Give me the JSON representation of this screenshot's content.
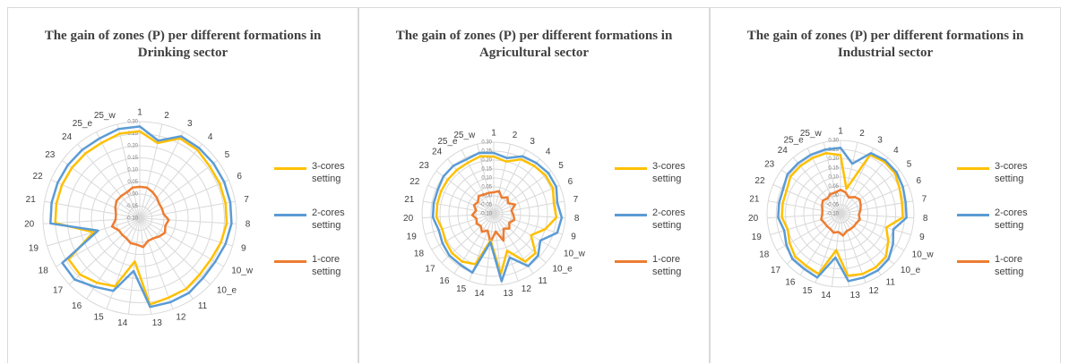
{
  "chart_data": [
    {
      "type": "radar",
      "title": "The gain of zones (P) per different formations in Drinking sector",
      "categories": [
        "1",
        "2",
        "3",
        "4",
        "5",
        "6",
        "7",
        "8",
        "9",
        "10_w",
        "10_e",
        "11",
        "12",
        "13",
        "14",
        "15",
        "16",
        "17",
        "18",
        "19",
        "20",
        "21",
        "22",
        "23",
        "24",
        "25_e",
        "25_w"
      ],
      "ylim": [
        -0.1,
        0.3
      ],
      "yticks": [
        {
          "value": -0.1,
          "label": "-0.10"
        },
        {
          "value": -0.05,
          "label": "-0.05"
        },
        {
          "value": 0,
          "label": "0.00"
        },
        {
          "value": 0.05,
          "label": "0.05"
        },
        {
          "value": 0.1,
          "label": "0.10"
        },
        {
          "value": 0.15,
          "label": "0.15"
        },
        {
          "value": 0.2,
          "label": "0.20"
        },
        {
          "value": 0.25,
          "label": "0.25"
        },
        {
          "value": 0.3,
          "label": "0.30"
        }
      ],
      "grid": true,
      "legend": "right",
      "series": [
        {
          "name": "3-cores setting",
          "color": "#FFC000",
          "values": [
            0.26,
            0.22,
            0.27,
            0.27,
            0.26,
            0.26,
            0.26,
            0.26,
            0.25,
            0.24,
            0.24,
            0.25,
            0.25,
            0.26,
            0.08,
            0.2,
            0.22,
            0.24,
            0.24,
            0.1,
            0.25,
            0.25,
            0.25,
            0.25,
            0.25,
            0.25,
            0.26
          ]
        },
        {
          "name": "2-cores setting",
          "color": "#5B9BD5",
          "values": [
            0.28,
            0.23,
            0.28,
            0.28,
            0.28,
            0.28,
            0.28,
            0.28,
            0.27,
            0.26,
            0.26,
            0.27,
            0.27,
            0.27,
            0.12,
            0.22,
            0.24,
            0.27,
            0.27,
            0.08,
            0.27,
            0.27,
            0.27,
            0.27,
            0.27,
            0.27,
            0.28
          ]
        },
        {
          "name": "1-core setting",
          "color": "#ED7D31",
          "values": [
            0.03,
            0.03,
            0.02,
            0.01,
            0,
            0,
            0,
            0.02,
            0.01,
            0.02,
            0.01,
            0,
            0,
            0.02,
            0.01,
            0.01,
            0,
            0,
            0,
            0.02,
            0,
            0,
            0.01,
            0.02,
            0.02,
            0.02,
            0.03
          ]
        }
      ]
    },
    {
      "type": "radar",
      "title": "The gain of zones (P) per different formations in Agricultural sector",
      "categories": [
        "1",
        "2",
        "3",
        "4",
        "5",
        "6",
        "7",
        "8",
        "9",
        "10_w",
        "10_e",
        "11",
        "12",
        "13",
        "14",
        "15",
        "16",
        "17",
        "18",
        "19",
        "20",
        "21",
        "22",
        "23",
        "24",
        "25_e",
        "25_w"
      ],
      "ylim": [
        -0.1,
        0.3
      ],
      "yticks": [
        {
          "value": -0.1,
          "label": "-0.10"
        },
        {
          "value": -0.05,
          "label": "-0.05"
        },
        {
          "value": 0,
          "label": "0.00"
        },
        {
          "value": 0.05,
          "label": "0.05"
        },
        {
          "value": 0.1,
          "label": "0.10"
        },
        {
          "value": 0.15,
          "label": "0.15"
        },
        {
          "value": 0.2,
          "label": "0.20"
        },
        {
          "value": 0.25,
          "label": "0.25"
        },
        {
          "value": 0.3,
          "label": "0.30"
        }
      ],
      "grid": true,
      "legend": "right",
      "series": [
        {
          "name": "3-cores setting",
          "color": "#FFC000",
          "values": [
            0.22,
            0.2,
            0.24,
            0.25,
            0.26,
            0.26,
            0.24,
            0.25,
            0.2,
            0.14,
            0.22,
            0.22,
            0.12,
            0.24,
            0.05,
            0.2,
            0.22,
            0.22,
            0.21,
            0.2,
            0.22,
            0.22,
            0.22,
            0.22,
            0.22,
            0.22,
            0.23
          ]
        },
        {
          "name": "2-cores setting",
          "color": "#5B9BD5",
          "values": [
            0.24,
            0.22,
            0.26,
            0.27,
            0.28,
            0.28,
            0.26,
            0.28,
            0.27,
            0.2,
            0.24,
            0.25,
            0.16,
            0.28,
            0.06,
            0.25,
            0.24,
            0.24,
            0.23,
            0.22,
            0.24,
            0.24,
            0.24,
            0.25,
            0.25,
            0.24,
            0.25
          ]
        },
        {
          "name": "1-core setting",
          "color": "#ED7D31",
          "values": [
            0.02,
            0.03,
            0,
            0.02,
            0,
            0.03,
            0,
            0.01,
            0.02,
            0,
            0.02,
            0,
            0.06,
            0,
            0.06,
            0,
            0.02,
            0,
            0.01,
            0,
            0.02,
            0,
            0.02,
            0.01,
            0.03,
            0.02,
            0.02
          ]
        }
      ]
    },
    {
      "type": "radar",
      "title": "The gain of zones (P) per different formations in Industrial sector",
      "categories": [
        "1",
        "2",
        "3",
        "4",
        "5",
        "6",
        "7",
        "8",
        "9",
        "10_w",
        "10_e",
        "11",
        "12",
        "13",
        "14",
        "15",
        "16",
        "17",
        "18",
        "19",
        "20",
        "21",
        "22",
        "23",
        "24",
        "25_e",
        "25_w"
      ],
      "ylim": [
        -0.1,
        0.3
      ],
      "yticks": [
        {
          "value": -0.1,
          "label": "-0.10"
        },
        {
          "value": -0.05,
          "label": "-0.05"
        },
        {
          "value": 0,
          "label": "0.00"
        },
        {
          "value": 0.05,
          "label": "0.05"
        },
        {
          "value": 0.1,
          "label": "0.10"
        },
        {
          "value": 0.15,
          "label": "0.15"
        },
        {
          "value": 0.2,
          "label": "0.20"
        },
        {
          "value": 0.25,
          "label": "0.25"
        },
        {
          "value": 0.3,
          "label": "0.30"
        }
      ],
      "grid": true,
      "legend": "right",
      "series": [
        {
          "name": "3-cores setting",
          "color": "#FFC000",
          "values": [
            0.22,
            0.04,
            0.26,
            0.27,
            0.27,
            0.25,
            0.24,
            0.24,
            0.16,
            0.2,
            0.24,
            0.25,
            0.25,
            0.24,
            0.1,
            0.25,
            0.24,
            0.24,
            0.22,
            0.2,
            0.22,
            0.22,
            0.22,
            0.24,
            0.24,
            0.24,
            0.24
          ]
        },
        {
          "name": "2-cores setting",
          "color": "#5B9BD5",
          "values": [
            0.26,
            0.18,
            0.27,
            0.28,
            0.28,
            0.27,
            0.26,
            0.26,
            0.2,
            0.23,
            0.26,
            0.27,
            0.27,
            0.27,
            0.14,
            0.27,
            0.26,
            0.26,
            0.24,
            0.22,
            0.24,
            0.24,
            0.24,
            0.26,
            0.26,
            0.26,
            0.26
          ]
        },
        {
          "name": "1-core setting",
          "color": "#ED7D31",
          "values": [
            0.03,
            0.02,
            0,
            0.02,
            0.03,
            0.02,
            0.01,
            0,
            0.01,
            0,
            0,
            0,
            0,
            0.02,
            0,
            0.01,
            0,
            0,
            0,
            0.01,
            0,
            0,
            0.01,
            0.02,
            0.01,
            0.02,
            0.02
          ]
        }
      ]
    }
  ]
}
